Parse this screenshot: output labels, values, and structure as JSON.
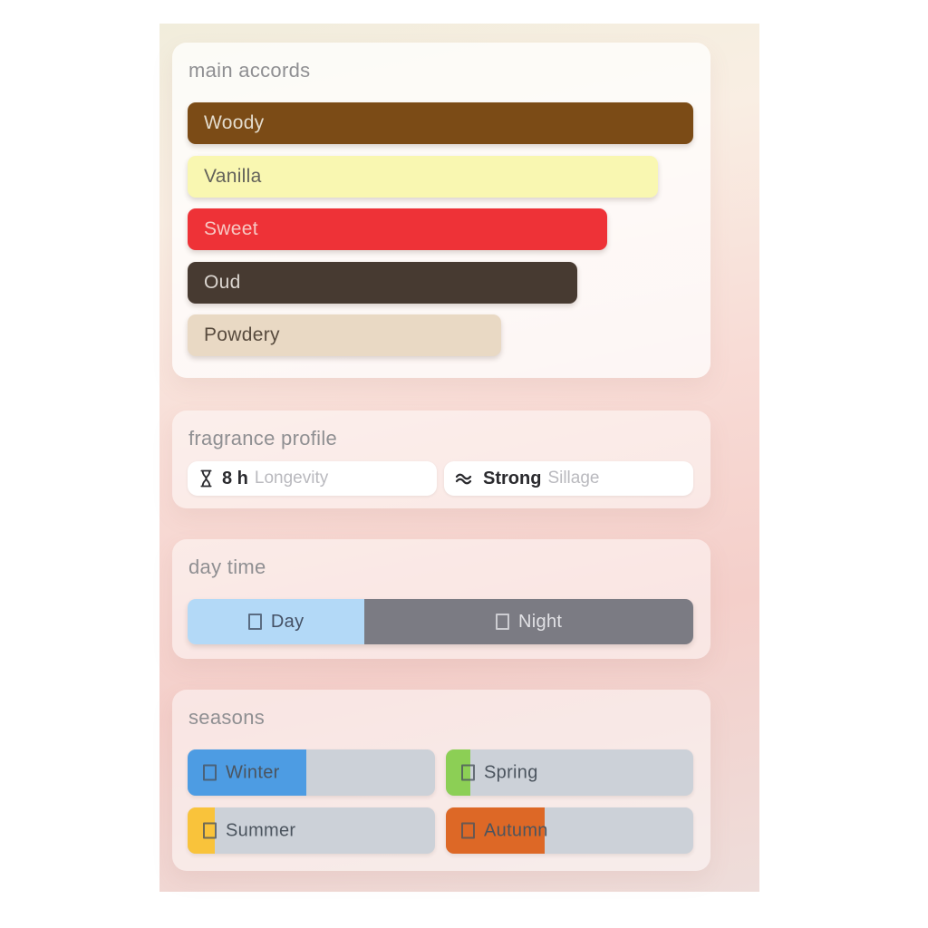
{
  "accords_card": {
    "title": "main accords",
    "accords": [
      {
        "name": "Woody",
        "width_pct": 100,
        "color": "#7b4b16",
        "text_color": "#e4dccd"
      },
      {
        "name": "Vanilla",
        "width_pct": 93,
        "color": "#f9f7b1",
        "text_color": "#63625a"
      },
      {
        "name": "Sweet",
        "width_pct": 83,
        "color": "#ee3237",
        "text_color": "#f7c8c3"
      },
      {
        "name": "Oud",
        "width_pct": 77,
        "color": "#473a31",
        "text_color": "#dcd6d0"
      },
      {
        "name": "Powdery",
        "width_pct": 62,
        "color": "#e9d9c4",
        "text_color": "#584b3e"
      }
    ]
  },
  "profile_card": {
    "title": "fragrance profile",
    "longevity": {
      "icon": "hourglass-icon",
      "value": "8 h",
      "label": "Longevity"
    },
    "sillage": {
      "icon": "waves-icon",
      "value": "Strong",
      "label": "Sillage"
    }
  },
  "daytime_card": {
    "title": "day time",
    "segments": [
      {
        "name": "Day",
        "icon": "placeholder-box-icon",
        "width_pct": 35,
        "color": "#b3d9f7",
        "text_color": "#445064"
      },
      {
        "name": "Night",
        "icon": "placeholder-box-icon",
        "width_pct": 65,
        "color": "#7b7b83",
        "text_color": "#e2e2e6"
      }
    ]
  },
  "seasons_card": {
    "title": "seasons",
    "track_color": "#ccd1d8",
    "seasons": [
      {
        "name": "Winter",
        "icon": "placeholder-box-icon",
        "fill_pct": 48,
        "fill_color": "#4d9ce3"
      },
      {
        "name": "Spring",
        "icon": "placeholder-box-icon",
        "fill_pct": 10,
        "fill_color": "#8ccf55"
      },
      {
        "name": "Summer",
        "icon": "placeholder-box-icon",
        "fill_pct": 11,
        "fill_color": "#f9c33b"
      },
      {
        "name": "Autumn",
        "icon": "placeholder-box-icon",
        "fill_pct": 40,
        "fill_color": "#dd6826"
      }
    ]
  }
}
